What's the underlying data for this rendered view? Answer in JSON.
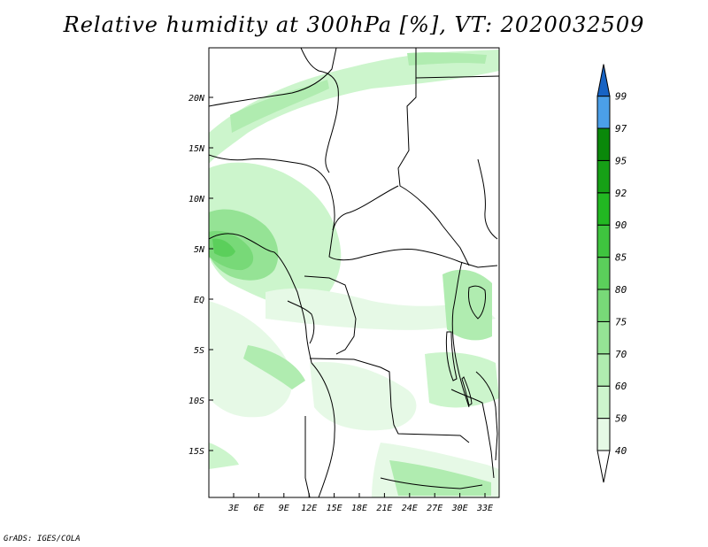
{
  "title": "Relative humidity at 300hPa [%], VT: 2020032509",
  "footer": "GrADS: IGES/COLA",
  "map": {
    "lat_labels": [
      "20N",
      "15N",
      "10N",
      "5N",
      "EQ",
      "5S",
      "10S",
      "15S"
    ],
    "lon_labels": [
      "3E",
      "6E",
      "9E",
      "12E",
      "15E",
      "18E",
      "21E",
      "24E",
      "27E",
      "30E",
      "33E"
    ]
  },
  "colorbar": {
    "levels": [
      "40",
      "50",
      "60",
      "70",
      "75",
      "80",
      "85",
      "90",
      "92",
      "95",
      "97",
      "99"
    ],
    "colors": [
      "#e6f9e6",
      "#ccf5cc",
      "#b0ecb0",
      "#95e395",
      "#78d978",
      "#5bcf5b",
      "#3fc43f",
      "#22b822",
      "#16a016",
      "#0a880a",
      "#4b9fe8",
      "#2a7ed8",
      "#1763c4"
    ],
    "colors_note": ""
  }
}
